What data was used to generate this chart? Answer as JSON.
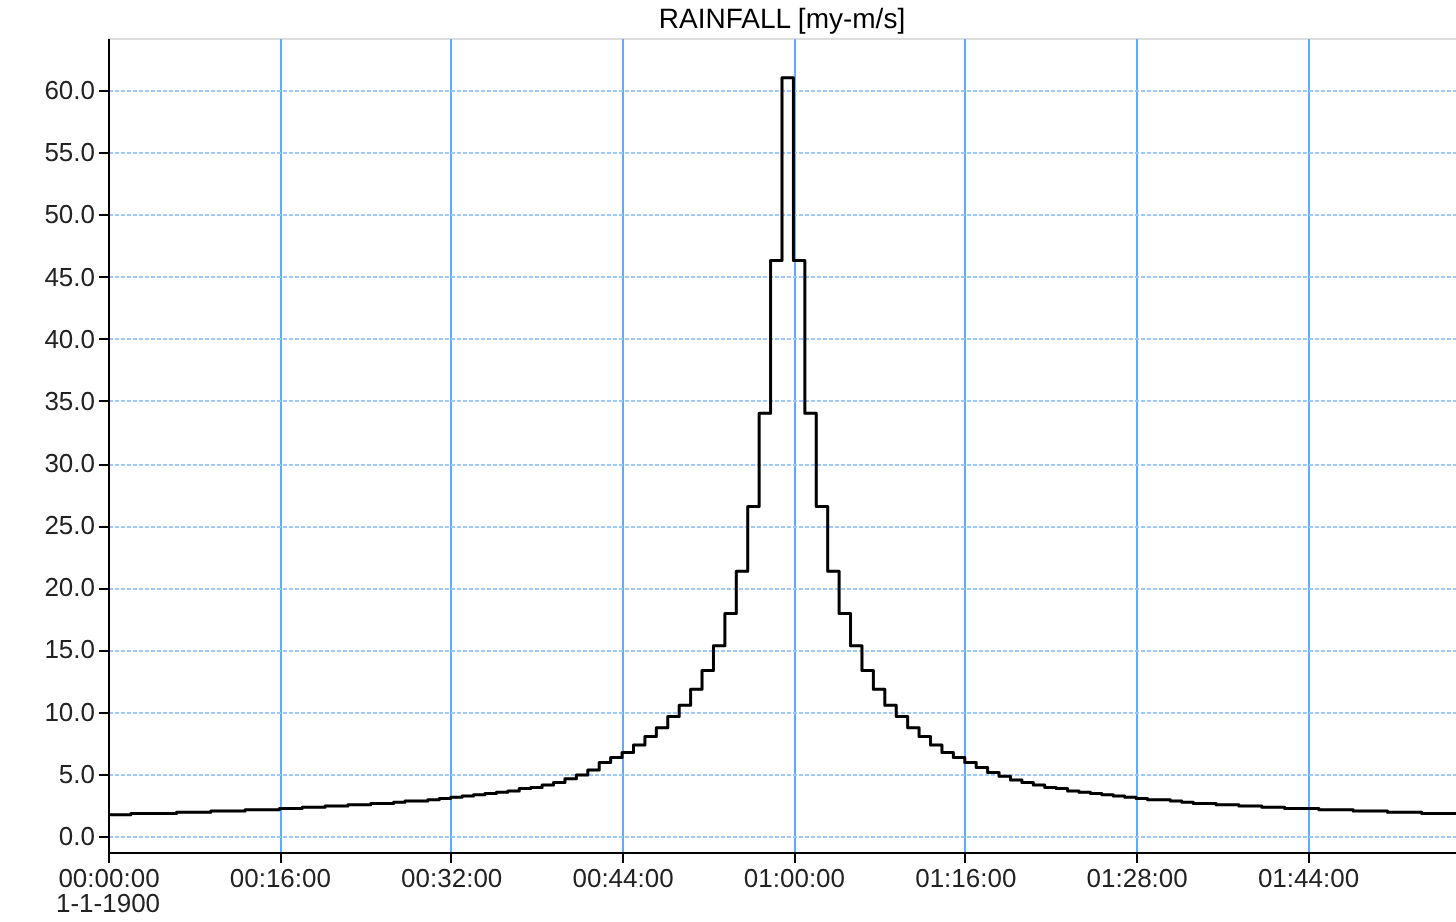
{
  "chart_data": {
    "type": "step",
    "title": "RAINFALL [my-m/s]",
    "x": [
      "1900-01-01T00:00",
      "1900-01-01T00:01",
      "1900-01-01T00:02",
      "1900-01-01T00:03",
      "1900-01-01T00:04",
      "1900-01-01T00:05",
      "1900-01-01T00:06",
      "1900-01-01T00:07",
      "1900-01-01T00:08",
      "1900-01-01T00:09",
      "1900-01-01T00:10",
      "1900-01-01T00:11",
      "1900-01-01T00:12",
      "1900-01-01T00:13",
      "1900-01-01T00:14",
      "1900-01-01T00:15",
      "1900-01-01T00:16",
      "1900-01-01T00:17",
      "1900-01-01T00:18",
      "1900-01-01T00:19",
      "1900-01-01T00:20",
      "1900-01-01T00:21",
      "1900-01-01T00:22",
      "1900-01-01T00:23",
      "1900-01-01T00:24",
      "1900-01-01T00:25",
      "1900-01-01T00:26",
      "1900-01-01T00:27",
      "1900-01-01T00:28",
      "1900-01-01T00:29",
      "1900-01-01T00:30",
      "1900-01-01T00:31",
      "1900-01-01T00:32",
      "1900-01-01T00:33",
      "1900-01-01T00:34",
      "1900-01-01T00:35",
      "1900-01-01T00:36",
      "1900-01-01T00:37",
      "1900-01-01T00:38",
      "1900-01-01T00:39",
      "1900-01-01T00:40",
      "1900-01-01T00:41",
      "1900-01-01T00:42",
      "1900-01-01T00:43",
      "1900-01-01T00:44",
      "1900-01-01T00:45",
      "1900-01-01T00:46",
      "1900-01-01T00:47",
      "1900-01-01T00:48",
      "1900-01-01T00:49",
      "1900-01-01T00:50",
      "1900-01-01T00:51",
      "1900-01-01T00:52",
      "1900-01-01T00:53",
      "1900-01-01T00:54",
      "1900-01-01T00:55",
      "1900-01-01T00:56",
      "1900-01-01T00:57",
      "1900-01-01T00:58",
      "1900-01-01T00:59",
      "1900-01-01T01:00",
      "1900-01-01T01:01",
      "1900-01-01T01:02",
      "1900-01-01T01:03",
      "1900-01-01T01:04",
      "1900-01-01T01:05",
      "1900-01-01T01:06",
      "1900-01-01T01:07",
      "1900-01-01T01:08",
      "1900-01-01T01:09",
      "1900-01-01T01:10",
      "1900-01-01T01:11",
      "1900-01-01T01:12",
      "1900-01-01T01:13",
      "1900-01-01T01:14",
      "1900-01-01T01:15",
      "1900-01-01T01:16",
      "1900-01-01T01:17",
      "1900-01-01T01:18",
      "1900-01-01T01:19",
      "1900-01-01T01:20",
      "1900-01-01T01:21",
      "1900-01-01T01:22",
      "1900-01-01T01:23",
      "1900-01-01T01:24",
      "1900-01-01T01:25",
      "1900-01-01T01:26",
      "1900-01-01T01:27",
      "1900-01-01T01:28",
      "1900-01-01T01:29",
      "1900-01-01T01:30",
      "1900-01-01T01:31",
      "1900-01-01T01:32",
      "1900-01-01T01:33",
      "1900-01-01T01:34",
      "1900-01-01T01:35",
      "1900-01-01T01:36",
      "1900-01-01T01:37",
      "1900-01-01T01:38",
      "1900-01-01T01:39",
      "1900-01-01T01:40",
      "1900-01-01T01:41",
      "1900-01-01T01:42",
      "1900-01-01T01:43",
      "1900-01-01T01:44",
      "1900-01-01T01:45",
      "1900-01-01T01:46",
      "1900-01-01T01:47",
      "1900-01-01T01:48",
      "1900-01-01T01:49",
      "1900-01-01T01:50",
      "1900-01-01T01:51",
      "1900-01-01T01:52",
      "1900-01-01T01:53",
      "1900-01-01T01:54",
      "1900-01-01T01:55",
      "1900-01-01T01:56",
      "1900-01-01T01:57",
      "1900-01-01T01:58"
    ],
    "series": [
      {
        "color": "#000000",
        "values": [
          1.7,
          1.7,
          1.8,
          1.8,
          1.8,
          1.8,
          1.9,
          1.9,
          1.9,
          2.0,
          2.0,
          2.0,
          2.1,
          2.1,
          2.1,
          2.2,
          2.2,
          2.3,
          2.3,
          2.4,
          2.4,
          2.5,
          2.5,
          2.6,
          2.6,
          2.7,
          2.8,
          2.8,
          2.9,
          3.0,
          3.1,
          3.2,
          3.3,
          3.4,
          3.5,
          3.6,
          3.8,
          3.9,
          4.1,
          4.3,
          4.6,
          4.9,
          5.3,
          5.9,
          6.3,
          6.7,
          7.3,
          8.0,
          8.7,
          9.6,
          10.5,
          11.8,
          13.3,
          15.3,
          17.9,
          21.3,
          26.5,
          34.0,
          46.3,
          61.0,
          46.3,
          34.0,
          26.5,
          21.3,
          17.9,
          15.3,
          13.3,
          11.8,
          10.5,
          9.6,
          8.7,
          8.0,
          7.3,
          6.7,
          6.3,
          5.9,
          5.5,
          5.1,
          4.8,
          4.5,
          4.3,
          4.1,
          3.9,
          3.8,
          3.6,
          3.5,
          3.4,
          3.3,
          3.2,
          3.1,
          3.0,
          2.9,
          2.9,
          2.8,
          2.7,
          2.6,
          2.6,
          2.5,
          2.5,
          2.4,
          2.4,
          2.3,
          2.3,
          2.2,
          2.2,
          2.2,
          2.1,
          2.1,
          2.1,
          2.0,
          2.0,
          2.0,
          1.9,
          1.9,
          1.9,
          1.8,
          1.8,
          1.8,
          1.8
        ]
      }
    ],
    "xlim": [
      "1900-01-01T00:00",
      "1900-01-01T01:58"
    ],
    "xticks": [
      {
        "value": "1900-01-01T00:00",
        "label": "00:00:00"
      },
      {
        "value": "1900-01-01T00:15",
        "label": "00:16:00"
      },
      {
        "value": "1900-01-01T00:30",
        "label": "00:32:00"
      },
      {
        "value": "1900-01-01T00:45",
        "label": "00:44:00"
      },
      {
        "value": "1900-01-01T01:00",
        "label": "01:00:00"
      },
      {
        "value": "1900-01-01T01:15",
        "label": "01:16:00"
      },
      {
        "value": "1900-01-01T01:30",
        "label": "01:28:00"
      },
      {
        "value": "1900-01-01T01:45",
        "label": "01:44:00"
      }
    ],
    "ylim": [
      -1.3,
      64.2
    ],
    "yticks": [
      {
        "value": 0,
        "label": "0.0"
      },
      {
        "value": 5,
        "label": "5.0"
      },
      {
        "value": 10,
        "label": "10.0"
      },
      {
        "value": 15,
        "label": "15.0"
      },
      {
        "value": 20,
        "label": "20.0"
      },
      {
        "value": 25,
        "label": "25.0"
      },
      {
        "value": 30,
        "label": "30.0"
      },
      {
        "value": 35,
        "label": "35.0"
      },
      {
        "value": 40,
        "label": "40.0"
      },
      {
        "value": 45,
        "label": "45.0"
      },
      {
        "value": 50,
        "label": "50.0"
      },
      {
        "value": 55,
        "label": "55.0"
      },
      {
        "value": 60,
        "label": "60.0"
      }
    ],
    "annotations": [
      "1-1-1900"
    ],
    "grid": true
  }
}
